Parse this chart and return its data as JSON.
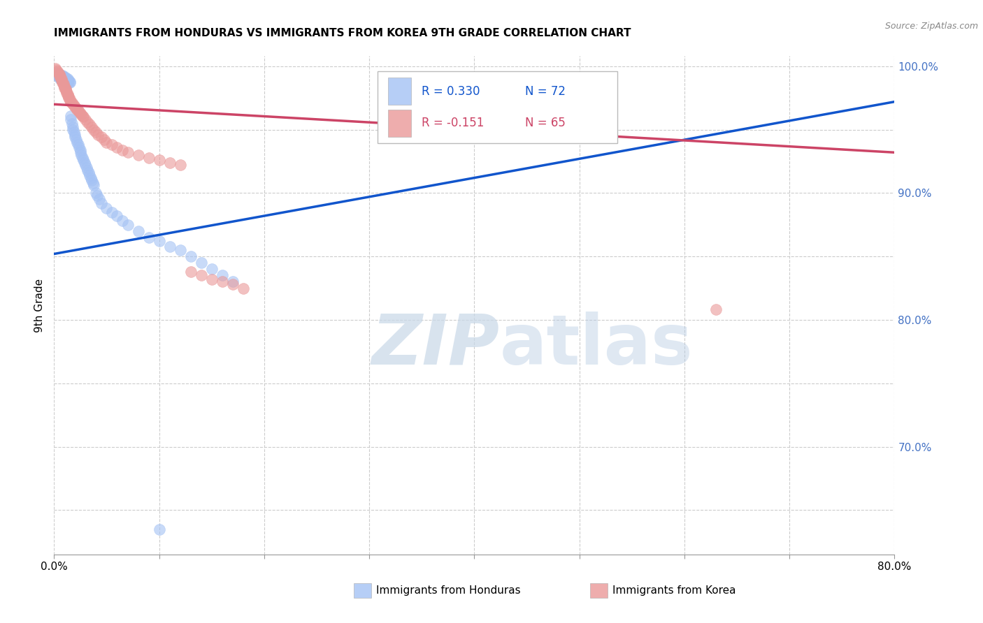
{
  "title": "IMMIGRANTS FROM HONDURAS VS IMMIGRANTS FROM KOREA 9TH GRADE CORRELATION CHART",
  "source": "Source: ZipAtlas.com",
  "xlim": [
    0.0,
    0.8
  ],
  "ylim": [
    0.615,
    1.008
  ],
  "ylabel": "9th Grade",
  "legend_blue_r": "R = 0.330",
  "legend_blue_n": "N = 72",
  "legend_pink_r": "R = -0.151",
  "legend_pink_n": "N = 65",
  "blue_color": "#a4c2f4",
  "pink_color": "#ea9999",
  "blue_line_color": "#1155cc",
  "pink_line_color": "#cc4466",
  "watermark_zip": "ZIP",
  "watermark_atlas": "atlas",
  "right_ytick_color": "#4472c4",
  "right_ytick_vals": [
    1.0,
    0.9,
    0.8,
    0.7
  ],
  "right_ytick_labels": [
    "100.0%",
    "90.0%",
    "80.0%",
    "70.0%"
  ],
  "left_ytick_vals": [
    0.65,
    0.7,
    0.75,
    0.8,
    0.85,
    0.9,
    0.95,
    1.0
  ],
  "xtick_vals": [
    0.0,
    0.1,
    0.2,
    0.3,
    0.4,
    0.5,
    0.6,
    0.7,
    0.8
  ],
  "xtick_major_labels": {
    "0": "0.0%",
    "8": "80.0%"
  },
  "blue_line_x0": 0.0,
  "blue_line_y0": 0.852,
  "blue_line_x1": 0.8,
  "blue_line_y1": 0.972,
  "pink_line_x0": 0.0,
  "pink_line_y0": 0.97,
  "pink_line_x1": 0.8,
  "pink_line_y1": 0.932,
  "blue_scatter_x": [
    0.002,
    0.003,
    0.004,
    0.005,
    0.005,
    0.006,
    0.006,
    0.007,
    0.007,
    0.008,
    0.008,
    0.009,
    0.009,
    0.01,
    0.01,
    0.011,
    0.011,
    0.012,
    0.012,
    0.013,
    0.013,
    0.014,
    0.014,
    0.015,
    0.015,
    0.016,
    0.016,
    0.017,
    0.018,
    0.018,
    0.019,
    0.02,
    0.02,
    0.021,
    0.022,
    0.023,
    0.024,
    0.025,
    0.025,
    0.026,
    0.027,
    0.028,
    0.029,
    0.03,
    0.031,
    0.032,
    0.033,
    0.034,
    0.035,
    0.036,
    0.037,
    0.038,
    0.04,
    0.041,
    0.043,
    0.045,
    0.05,
    0.055,
    0.06,
    0.065,
    0.07,
    0.08,
    0.09,
    0.1,
    0.11,
    0.12,
    0.13,
    0.14,
    0.15,
    0.16,
    0.17,
    0.1
  ],
  "blue_scatter_y": [
    0.995,
    0.992,
    0.993,
    0.991,
    0.994,
    0.99,
    0.993,
    0.992,
    0.99,
    0.991,
    0.993,
    0.989,
    0.992,
    0.991,
    0.99,
    0.988,
    0.991,
    0.989,
    0.99,
    0.988,
    0.99,
    0.987,
    0.989,
    0.988,
    0.987,
    0.961,
    0.958,
    0.955,
    0.952,
    0.95,
    0.948,
    0.946,
    0.944,
    0.942,
    0.94,
    0.938,
    0.936,
    0.934,
    0.932,
    0.93,
    0.928,
    0.926,
    0.924,
    0.922,
    0.92,
    0.918,
    0.916,
    0.914,
    0.912,
    0.91,
    0.908,
    0.906,
    0.9,
    0.898,
    0.895,
    0.892,
    0.888,
    0.885,
    0.882,
    0.878,
    0.875,
    0.87,
    0.865,
    0.862,
    0.858,
    0.855,
    0.85,
    0.845,
    0.84,
    0.835,
    0.83,
    0.635
  ],
  "pink_scatter_x": [
    0.001,
    0.002,
    0.003,
    0.004,
    0.005,
    0.005,
    0.006,
    0.006,
    0.007,
    0.007,
    0.008,
    0.008,
    0.009,
    0.009,
    0.01,
    0.01,
    0.011,
    0.011,
    0.012,
    0.012,
    0.013,
    0.013,
    0.014,
    0.014,
    0.015,
    0.015,
    0.016,
    0.017,
    0.018,
    0.019,
    0.02,
    0.021,
    0.022,
    0.023,
    0.024,
    0.025,
    0.026,
    0.027,
    0.028,
    0.03,
    0.032,
    0.034,
    0.036,
    0.038,
    0.04,
    0.042,
    0.045,
    0.048,
    0.05,
    0.055,
    0.06,
    0.065,
    0.07,
    0.08,
    0.09,
    0.1,
    0.11,
    0.12,
    0.13,
    0.14,
    0.15,
    0.16,
    0.17,
    0.18,
    0.63
  ],
  "pink_scatter_y": [
    0.998,
    0.997,
    0.996,
    0.995,
    0.994,
    0.993,
    0.992,
    0.991,
    0.99,
    0.989,
    0.988,
    0.987,
    0.986,
    0.985,
    0.984,
    0.983,
    0.982,
    0.981,
    0.98,
    0.979,
    0.978,
    0.977,
    0.976,
    0.975,
    0.974,
    0.973,
    0.972,
    0.971,
    0.97,
    0.969,
    0.968,
    0.967,
    0.966,
    0.965,
    0.964,
    0.963,
    0.962,
    0.961,
    0.96,
    0.958,
    0.956,
    0.954,
    0.952,
    0.95,
    0.948,
    0.946,
    0.944,
    0.942,
    0.94,
    0.938,
    0.936,
    0.934,
    0.932,
    0.93,
    0.928,
    0.926,
    0.924,
    0.922,
    0.838,
    0.835,
    0.832,
    0.83,
    0.828,
    0.825,
    0.808
  ]
}
